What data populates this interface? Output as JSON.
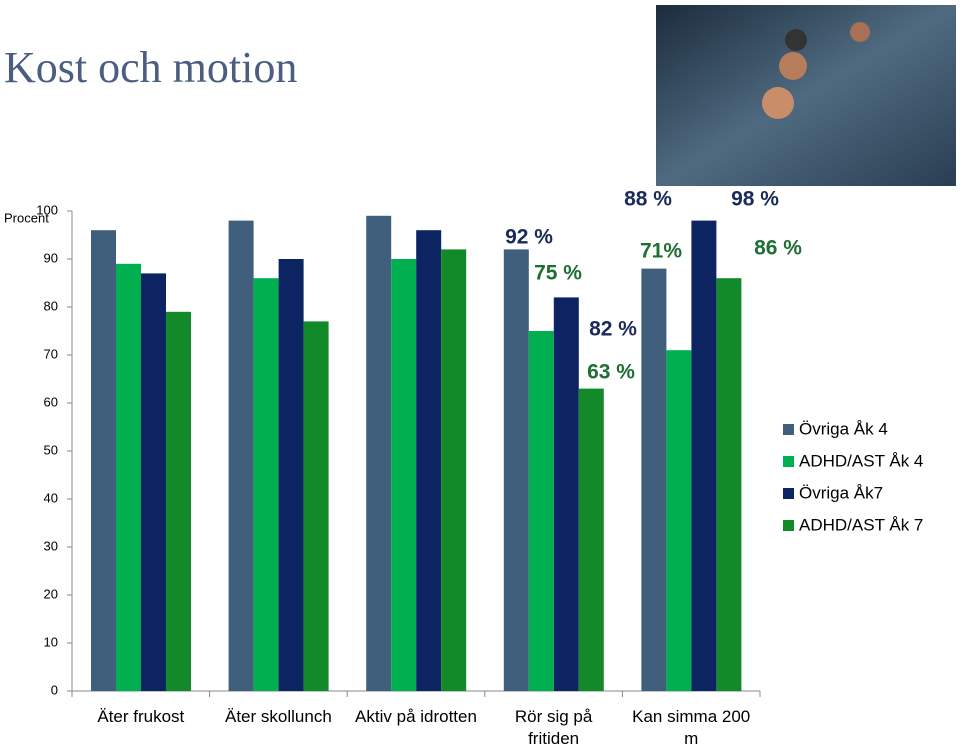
{
  "chart_data": {
    "type": "bar",
    "title": "Kost och motion",
    "y_label": "Procent",
    "categories": [
      "Äter frukost",
      "Äter skollunch",
      "Aktiv på idrotten",
      "Rör sig på fritiden",
      "Kan simma 200 m"
    ],
    "series": [
      {
        "name": "Övriga Åk 4",
        "color": "#3f5f7d",
        "values": [
          96,
          98,
          99,
          92,
          88
        ],
        "value_labels": [
          null,
          null,
          null,
          "92 %",
          "88 %"
        ],
        "label_color": "#1a2a5a"
      },
      {
        "name": "ADHD/AST Åk 4",
        "color": "#00b050",
        "values": [
          89,
          86,
          90,
          75,
          71
        ],
        "value_labels": [
          null,
          null,
          null,
          "75 %",
          "71%"
        ],
        "label_color": "#1f6e34"
      },
      {
        "name": "Övriga Åk7",
        "color": "#0d2463",
        "values": [
          87,
          90,
          96,
          82,
          98
        ],
        "value_labels": [
          null,
          null,
          null,
          "82 %",
          "98 %"
        ],
        "label_color": "#1a2a5a"
      },
      {
        "name": "ADHD/AST Åk 7",
        "color": "#138a2a",
        "values": [
          79,
          77,
          92,
          63,
          86
        ],
        "value_labels": [
          null,
          null,
          null,
          "63 %",
          "86 %"
        ],
        "label_color": "#1f6e34"
      }
    ],
    "ylim": [
      0,
      100
    ],
    "yticks": [
      0,
      10,
      20,
      30,
      40,
      50,
      60,
      70,
      80,
      90,
      100
    ],
    "grid": false,
    "legend": "right"
  }
}
